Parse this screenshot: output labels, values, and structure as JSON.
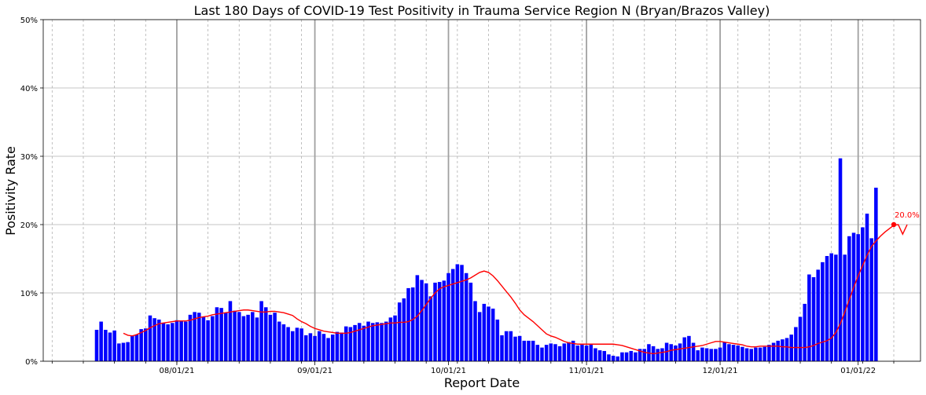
{
  "chart_data": {
    "type": "bar",
    "title": "Last 180 Days of COVID-19 Test Positivity in Trauma Service Region N (Bryan/Brazos Valley)",
    "xlabel": "Report Date",
    "ylabel": "Positivity Rate",
    "ylim": [
      0,
      50
    ],
    "yticks": [
      0,
      10,
      20,
      30,
      40,
      50
    ],
    "ytick_labels": [
      "0%",
      "10%",
      "20%",
      "30%",
      "40%",
      "50%"
    ],
    "x_start": "2021-07-14",
    "x_end": "2022-01-09",
    "xlim": [
      "2021-07-02",
      "2022-01-15"
    ],
    "xtick_dates": [
      "2021-08-01",
      "2021-09-01",
      "2021-10-01",
      "2021-11-01",
      "2021-12-01",
      "2022-01-01"
    ],
    "xtick_labels": [
      "08/01/21",
      "09/01/21",
      "10/01/21",
      "11/01/21",
      "12/01/21",
      "01/01/22"
    ],
    "grid": true,
    "series": [
      {
        "kind": "bar",
        "color": "#0000ff",
        "values": [
          4.6,
          5.8,
          4.6,
          4.2,
          4.5,
          2.6,
          2.7,
          2.8,
          3.8,
          3.9,
          4.7,
          4.8,
          6.7,
          6.3,
          6.1,
          5.6,
          5.4,
          5.6,
          6.0,
          5.9,
          5.8,
          6.8,
          7.2,
          7.1,
          6.5,
          6.0,
          6.6,
          7.9,
          7.8,
          7.1,
          8.8,
          7.4,
          7.2,
          6.6,
          6.8,
          7.2,
          6.4,
          8.8,
          7.9,
          6.8,
          7.1,
          5.8,
          5.4,
          5.0,
          4.4,
          4.9,
          4.8,
          3.8,
          4.1,
          3.7,
          4.4,
          4.0,
          3.4,
          3.9,
          4.3,
          4.2,
          5.1,
          5.0,
          5.3,
          5.6,
          5.2,
          5.8,
          5.6,
          5.7,
          5.6,
          5.8,
          6.4,
          6.7,
          8.6,
          9.2,
          10.7,
          10.8,
          12.6,
          11.9,
          11.4,
          9.5,
          11.5,
          11.6,
          11.8,
          12.9,
          13.5,
          14.2,
          14.1,
          12.9,
          11.5,
          8.8,
          7.2,
          8.4,
          8.0,
          7.7,
          6.1,
          3.8,
          4.4,
          4.4,
          3.6,
          3.7,
          3.0,
          3.0,
          3.0,
          2.4,
          2.0,
          2.4,
          2.6,
          2.5,
          2.2,
          2.6,
          2.8,
          3.0,
          2.3,
          2.4,
          2.3,
          2.4,
          1.9,
          1.6,
          1.5,
          1.0,
          0.8,
          0.7,
          1.3,
          1.3,
          1.5,
          1.3,
          1.8,
          1.8,
          2.5,
          2.2,
          1.8,
          1.9,
          2.7,
          2.5,
          2.3,
          2.6,
          3.5,
          3.7,
          2.7,
          1.6,
          2.0,
          1.9,
          1.8,
          1.8,
          2.0,
          2.8,
          2.5,
          2.4,
          2.3,
          2.1,
          1.9,
          1.8,
          2.0,
          2.0,
          2.1,
          2.4,
          2.7,
          3.0,
          3.2,
          3.4,
          3.9,
          5.0,
          6.5,
          8.4,
          12.7,
          12.3,
          13.4,
          14.5,
          15.4,
          15.8,
          15.6,
          29.7,
          15.6,
          18.3,
          18.8,
          18.6,
          19.6,
          21.6,
          18.0,
          25.4
        ]
      },
      {
        "kind": "line",
        "color": "#ff0000",
        "start_index": 6,
        "values": [
          4.1,
          3.8,
          3.7,
          3.9,
          4.2,
          4.5,
          4.9,
          5.2,
          5.5,
          5.6,
          5.7,
          5.8,
          5.9,
          5.9,
          5.9,
          6.0,
          6.2,
          6.4,
          6.5,
          6.6,
          6.8,
          6.9,
          7.0,
          7.1,
          7.2,
          7.3,
          7.4,
          7.5,
          7.5,
          7.4,
          7.3,
          7.2,
          7.2,
          7.3,
          7.3,
          7.2,
          7.1,
          6.9,
          6.7,
          6.2,
          5.8,
          5.5,
          5.1,
          4.8,
          4.6,
          4.4,
          4.3,
          4.2,
          4.1,
          4.1,
          4.1,
          4.2,
          4.4,
          4.6,
          4.8,
          5.0,
          5.2,
          5.3,
          5.4,
          5.5,
          5.6,
          5.6,
          5.7,
          5.7,
          5.8,
          6.1,
          6.6,
          7.4,
          8.3,
          9.2,
          10.0,
          10.6,
          10.9,
          11.1,
          11.3,
          11.5,
          11.7,
          11.9,
          12.2,
          12.6,
          13.0,
          13.2,
          13.0,
          12.5,
          11.8,
          11.0,
          10.2,
          9.4,
          8.5,
          7.5,
          6.8,
          6.3,
          5.8,
          5.2,
          4.6,
          4.0,
          3.7,
          3.5,
          3.2,
          2.9,
          2.7,
          2.6,
          2.5,
          2.5,
          2.5,
          2.5,
          2.5,
          2.5,
          2.5,
          2.5,
          2.5,
          2.4,
          2.3,
          2.1,
          1.9,
          1.7,
          1.5,
          1.3,
          1.2,
          1.1,
          1.2,
          1.3,
          1.4,
          1.6,
          1.7,
          1.8,
          1.9,
          2.0,
          2.1,
          2.2,
          2.3,
          2.5,
          2.7,
          2.9,
          2.9,
          2.8,
          2.7,
          2.6,
          2.5,
          2.4,
          2.2,
          2.1,
          2.1,
          2.2,
          2.2,
          2.2,
          2.2,
          2.2,
          2.1,
          2.1,
          2.0,
          2.0,
          2.0,
          2.0,
          2.1,
          2.3,
          2.6,
          2.8,
          3.0,
          3.4,
          4.2,
          5.5,
          7.2,
          9.0,
          10.8,
          12.5,
          14.0,
          15.5,
          16.8,
          17.6,
          18.3,
          18.9,
          19.4,
          19.9,
          20.0,
          18.6,
          20.0
        ]
      }
    ],
    "annotations": [
      {
        "text": "20.0%",
        "index": 179,
        "value": 20.0,
        "color": "#ff0000"
      }
    ]
  }
}
